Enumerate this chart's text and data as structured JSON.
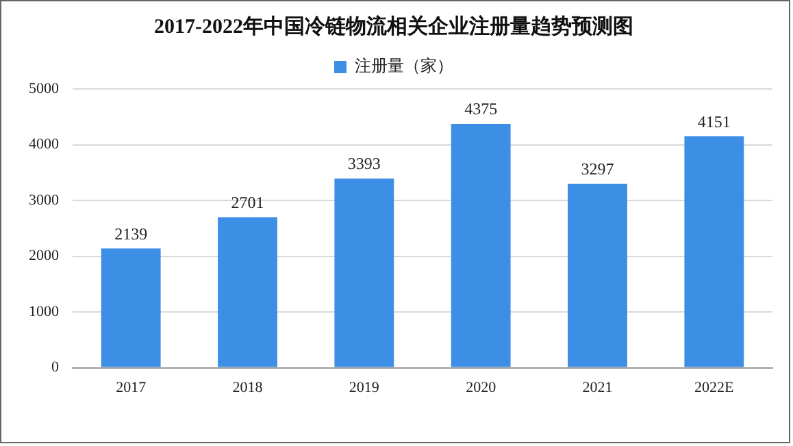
{
  "chart_data": {
    "type": "bar",
    "title": "2017-2022年中国冷链物流相关企业注册量趋势预测图",
    "categories": [
      "2017",
      "2018",
      "2019",
      "2020",
      "2021",
      "2022E"
    ],
    "series": [
      {
        "name": "注册量（家）",
        "color": "#3d8fe6",
        "values": [
          2139,
          2701,
          3393,
          4375,
          3297,
          4151
        ]
      }
    ],
    "ylim": [
      0,
      5000
    ],
    "yticks": [
      0,
      1000,
      2000,
      3000,
      4000,
      5000
    ],
    "grid": "y",
    "legend": "top",
    "data_labels": true
  }
}
